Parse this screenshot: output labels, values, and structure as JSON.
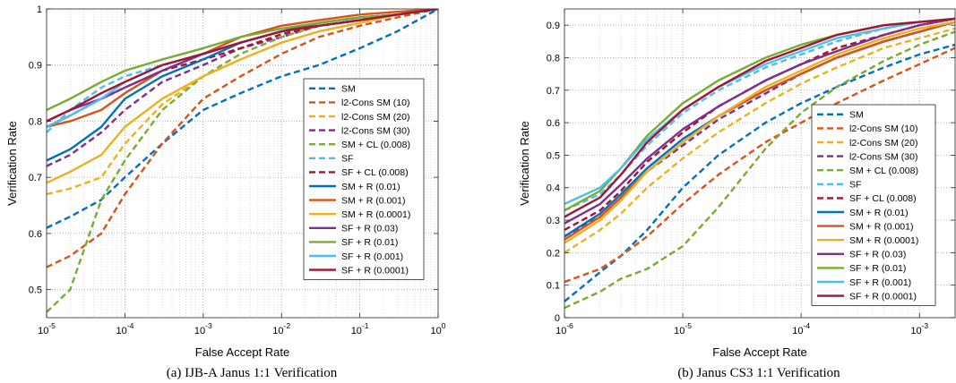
{
  "chart_data": [
    {
      "type": "line",
      "caption": "(a) IJB-A Janus 1:1 Verification",
      "xlabel": "False Accept Rate",
      "ylabel": "Verification Rate",
      "xscale": "log",
      "xlim": [
        1e-05,
        1
      ],
      "ylim": [
        0.45,
        1
      ],
      "xticks": [
        1e-05,
        0.0001,
        0.001,
        0.01,
        0.1,
        1
      ],
      "xtick_labels": [
        [
          "10",
          "-5"
        ],
        [
          "10",
          "-4"
        ],
        [
          "10",
          "-3"
        ],
        [
          "10",
          "-2"
        ],
        [
          "10",
          "-1"
        ],
        [
          "10",
          "0"
        ]
      ],
      "yticks": [
        0.5,
        0.6,
        0.7,
        0.8,
        0.9,
        1
      ],
      "ytick_labels": [
        "0.5",
        "0.6",
        "0.7",
        "0.8",
        "0.9",
        "1"
      ],
      "grid": true,
      "legend_position": "center-right",
      "series": [
        {
          "name": "SM",
          "color": "#0072BD",
          "dash": true,
          "x": [
            1e-05,
            2e-05,
            5e-05,
            0.0001,
            0.0003,
            0.001,
            0.003,
            0.01,
            0.03,
            0.1,
            0.3,
            1
          ],
          "y": [
            0.61,
            0.63,
            0.66,
            0.7,
            0.76,
            0.82,
            0.85,
            0.88,
            0.9,
            0.93,
            0.96,
            1.0
          ]
        },
        {
          "name": "l2-Cons SM (10)",
          "color": "#D95319",
          "dash": true,
          "x": [
            1e-05,
            2e-05,
            5e-05,
            0.0001,
            0.0003,
            0.001,
            0.003,
            0.01,
            0.03,
            0.1,
            0.3,
            1
          ],
          "y": [
            0.54,
            0.56,
            0.6,
            0.67,
            0.76,
            0.84,
            0.88,
            0.92,
            0.95,
            0.97,
            0.985,
            1.0
          ]
        },
        {
          "name": "l2-Cons SM (20)",
          "color": "#EDB120",
          "dash": true,
          "x": [
            1e-05,
            2e-05,
            5e-05,
            0.0001,
            0.0003,
            0.001,
            0.003,
            0.01,
            0.03,
            0.1,
            0.3,
            1
          ],
          "y": [
            0.67,
            0.68,
            0.7,
            0.76,
            0.83,
            0.88,
            0.91,
            0.94,
            0.96,
            0.975,
            0.99,
            1.0
          ]
        },
        {
          "name": "l2-Cons SM (30)",
          "color": "#7E2F8E",
          "dash": true,
          "x": [
            1e-05,
            2e-05,
            5e-05,
            0.0001,
            0.0003,
            0.001,
            0.003,
            0.01,
            0.03,
            0.1,
            0.3,
            1
          ],
          "y": [
            0.72,
            0.74,
            0.78,
            0.82,
            0.87,
            0.9,
            0.93,
            0.95,
            0.97,
            0.98,
            0.99,
            1.0
          ]
        },
        {
          "name": "SM + CL (0.008)",
          "color": "#77AC30",
          "dash": true,
          "x": [
            1e-05,
            2e-05,
            5e-05,
            0.0001,
            0.0003,
            0.001,
            0.003,
            0.01,
            0.03,
            0.1,
            0.3,
            1
          ],
          "y": [
            0.46,
            0.5,
            0.66,
            0.73,
            0.82,
            0.88,
            0.92,
            0.95,
            0.97,
            0.98,
            0.99,
            1.0
          ]
        },
        {
          "name": "SF",
          "color": "#4DBEEE",
          "dash": true,
          "x": [
            1e-05,
            2e-05,
            5e-05,
            0.0001,
            0.0003,
            0.001,
            0.003,
            0.01,
            0.03,
            0.1,
            0.3,
            1
          ],
          "y": [
            0.78,
            0.82,
            0.86,
            0.88,
            0.9,
            0.92,
            0.94,
            0.96,
            0.97,
            0.98,
            0.99,
            1.0
          ]
        },
        {
          "name": "SF + CL (0.008)",
          "color": "#A2142F",
          "dash": true,
          "x": [
            1e-05,
            2e-05,
            5e-05,
            0.0001,
            0.0003,
            0.001,
            0.003,
            0.01,
            0.03,
            0.1,
            0.3,
            1
          ],
          "y": [
            0.79,
            0.81,
            0.84,
            0.86,
            0.89,
            0.91,
            0.93,
            0.955,
            0.97,
            0.98,
            0.99,
            1.0
          ]
        },
        {
          "name": "SM + R (0.01)",
          "color": "#0072BD",
          "dash": false,
          "x": [
            1e-05,
            2e-05,
            5e-05,
            0.0001,
            0.0003,
            0.001,
            0.003,
            0.01,
            0.03,
            0.1,
            0.3,
            1
          ],
          "y": [
            0.73,
            0.75,
            0.79,
            0.84,
            0.88,
            0.91,
            0.94,
            0.96,
            0.975,
            0.985,
            0.99,
            1.0
          ]
        },
        {
          "name": "SM + R (0.001)",
          "color": "#D95319",
          "dash": false,
          "x": [
            1e-05,
            2e-05,
            5e-05,
            0.0001,
            0.0003,
            0.001,
            0.003,
            0.01,
            0.03,
            0.1,
            0.3,
            1
          ],
          "y": [
            0.79,
            0.8,
            0.82,
            0.85,
            0.89,
            0.92,
            0.95,
            0.97,
            0.98,
            0.99,
            0.995,
            1.0
          ]
        },
        {
          "name": "SM + R (0.0001)",
          "color": "#EDB120",
          "dash": false,
          "x": [
            1e-05,
            2e-05,
            5e-05,
            0.0001,
            0.0003,
            0.001,
            0.003,
            0.01,
            0.03,
            0.1,
            0.3,
            1
          ],
          "y": [
            0.69,
            0.71,
            0.74,
            0.79,
            0.84,
            0.88,
            0.91,
            0.94,
            0.96,
            0.975,
            0.99,
            1.0
          ]
        },
        {
          "name": "SF + R (0.03)",
          "color": "#7E2F8E",
          "dash": false,
          "x": [
            1e-05,
            2e-05,
            5e-05,
            0.0001,
            0.0003,
            0.001,
            0.003,
            0.01,
            0.03,
            0.1,
            0.3,
            1
          ],
          "y": [
            0.8,
            0.82,
            0.84,
            0.86,
            0.89,
            0.92,
            0.94,
            0.96,
            0.975,
            0.985,
            0.99,
            1.0
          ]
        },
        {
          "name": "SF + R (0.01)",
          "color": "#77AC30",
          "dash": false,
          "x": [
            1e-05,
            2e-05,
            5e-05,
            0.0001,
            0.0003,
            0.001,
            0.003,
            0.01,
            0.03,
            0.1,
            0.3,
            1
          ],
          "y": [
            0.82,
            0.84,
            0.87,
            0.89,
            0.91,
            0.93,
            0.95,
            0.965,
            0.975,
            0.985,
            0.99,
            1.0
          ]
        },
        {
          "name": "SF + R (0.001)",
          "color": "#4DBEEE",
          "dash": false,
          "x": [
            1e-05,
            2e-05,
            5e-05,
            0.0001,
            0.0003,
            0.001,
            0.003,
            0.01,
            0.03,
            0.1,
            0.3,
            1
          ],
          "y": [
            0.79,
            0.81,
            0.84,
            0.87,
            0.9,
            0.92,
            0.94,
            0.96,
            0.97,
            0.98,
            0.99,
            1.0
          ]
        },
        {
          "name": "SF + R (0.0001)",
          "color": "#A2142F",
          "dash": false,
          "x": [
            1e-05,
            2e-05,
            5e-05,
            0.0001,
            0.0003,
            0.001,
            0.003,
            0.01,
            0.03,
            0.1,
            0.3,
            1
          ],
          "y": [
            0.8,
            0.82,
            0.85,
            0.87,
            0.9,
            0.92,
            0.94,
            0.96,
            0.97,
            0.98,
            0.99,
            1.0
          ]
        }
      ]
    },
    {
      "type": "line",
      "caption": "(b) Janus CS3 1:1 Verification",
      "xlabel": "False Accept Rate",
      "ylabel": "Verification Rate",
      "xscale": "log",
      "xlim": [
        1e-06,
        0.002
      ],
      "ylim": [
        0,
        0.95
      ],
      "xticks": [
        1e-06,
        1e-05,
        0.0001,
        0.001
      ],
      "xtick_labels": [
        [
          "10",
          "-6"
        ],
        [
          "10",
          "-5"
        ],
        [
          "10",
          "-4"
        ],
        [
          "10",
          "-3"
        ]
      ],
      "yticks": [
        0,
        0.1,
        0.2,
        0.3,
        0.4,
        0.5,
        0.6,
        0.7,
        0.8,
        0.9
      ],
      "ytick_labels": [
        "0",
        "0.1",
        "0.2",
        "0.3",
        "0.4",
        "0.5",
        "0.6",
        "0.7",
        "0.8",
        "0.9"
      ],
      "grid": true,
      "legend_position": "center-right",
      "series": [
        {
          "name": "SM",
          "color": "#0072BD",
          "dash": true,
          "x": [
            1e-06,
            2e-06,
            3e-06,
            5e-06,
            1e-05,
            2e-05,
            5e-05,
            0.0001,
            0.0002,
            0.0005,
            0.001,
            0.002
          ],
          "y": [
            0.05,
            0.14,
            0.19,
            0.27,
            0.4,
            0.5,
            0.6,
            0.66,
            0.71,
            0.77,
            0.81,
            0.84
          ]
        },
        {
          "name": "l2-Cons SM (10)",
          "color": "#D95319",
          "dash": true,
          "x": [
            1e-06,
            2e-06,
            3e-06,
            5e-06,
            1e-05,
            2e-05,
            5e-05,
            0.0001,
            0.0002,
            0.0005,
            0.001,
            0.002
          ],
          "y": [
            0.11,
            0.15,
            0.19,
            0.25,
            0.35,
            0.44,
            0.54,
            0.6,
            0.66,
            0.73,
            0.78,
            0.83
          ]
        },
        {
          "name": "l2-Cons SM (20)",
          "color": "#EDB120",
          "dash": true,
          "x": [
            1e-06,
            2e-06,
            3e-06,
            5e-06,
            1e-05,
            2e-05,
            5e-05,
            0.0001,
            0.0002,
            0.0005,
            0.001,
            0.002
          ],
          "y": [
            0.2,
            0.27,
            0.32,
            0.4,
            0.49,
            0.57,
            0.66,
            0.72,
            0.77,
            0.83,
            0.86,
            0.89
          ]
        },
        {
          "name": "l2-Cons SM (30)",
          "color": "#7E2F8E",
          "dash": true,
          "x": [
            1e-06,
            2e-06,
            3e-06,
            5e-06,
            1e-05,
            2e-05,
            5e-05,
            0.0001,
            0.0002,
            0.0005,
            0.001,
            0.002
          ],
          "y": [
            0.25,
            0.31,
            0.37,
            0.45,
            0.53,
            0.61,
            0.69,
            0.75,
            0.8,
            0.85,
            0.88,
            0.91
          ]
        },
        {
          "name": "SM + CL (0.008)",
          "color": "#77AC30",
          "dash": true,
          "x": [
            1e-06,
            2e-06,
            3e-06,
            5e-06,
            1e-05,
            2e-05,
            5e-05,
            0.0001,
            0.0002,
            0.0005,
            0.001,
            0.002
          ],
          "y": [
            0.03,
            0.08,
            0.12,
            0.15,
            0.22,
            0.34,
            0.52,
            0.63,
            0.71,
            0.79,
            0.84,
            0.88
          ]
        },
        {
          "name": "SF",
          "color": "#4DBEEE",
          "dash": true,
          "x": [
            1e-06,
            2e-06,
            3e-06,
            5e-06,
            1e-05,
            2e-05,
            5e-05,
            0.0001,
            0.0002,
            0.0005,
            0.001,
            0.002
          ],
          "y": [
            0.33,
            0.38,
            0.44,
            0.53,
            0.63,
            0.7,
            0.77,
            0.81,
            0.85,
            0.89,
            0.91,
            0.92
          ]
        },
        {
          "name": "SF + CL (0.008)",
          "color": "#A2142F",
          "dash": true,
          "x": [
            1e-06,
            2e-06,
            3e-06,
            5e-06,
            1e-05,
            2e-05,
            5e-05,
            0.0001,
            0.0002,
            0.0005,
            0.001,
            0.002
          ],
          "y": [
            0.27,
            0.33,
            0.39,
            0.48,
            0.57,
            0.65,
            0.73,
            0.78,
            0.83,
            0.87,
            0.9,
            0.92
          ]
        },
        {
          "name": "SM + R (0.01)",
          "color": "#0072BD",
          "dash": false,
          "x": [
            1e-06,
            2e-06,
            3e-06,
            5e-06,
            1e-05,
            2e-05,
            5e-05,
            0.0001,
            0.0002,
            0.0005,
            0.001,
            0.002
          ],
          "y": [
            0.25,
            0.32,
            0.38,
            0.46,
            0.55,
            0.62,
            0.7,
            0.75,
            0.8,
            0.85,
            0.88,
            0.91
          ]
        },
        {
          "name": "SM + R (0.001)",
          "color": "#D95319",
          "dash": false,
          "x": [
            1e-06,
            2e-06,
            3e-06,
            5e-06,
            1e-05,
            2e-05,
            5e-05,
            0.0001,
            0.0002,
            0.0005,
            0.001,
            0.002
          ],
          "y": [
            0.24,
            0.31,
            0.37,
            0.45,
            0.54,
            0.62,
            0.7,
            0.75,
            0.8,
            0.85,
            0.88,
            0.91
          ]
        },
        {
          "name": "SM + R (0.0001)",
          "color": "#EDB120",
          "dash": false,
          "x": [
            1e-06,
            2e-06,
            3e-06,
            5e-06,
            1e-05,
            2e-05,
            5e-05,
            0.0001,
            0.0002,
            0.0005,
            0.001,
            0.002
          ],
          "y": [
            0.23,
            0.3,
            0.36,
            0.45,
            0.54,
            0.62,
            0.71,
            0.76,
            0.81,
            0.86,
            0.89,
            0.91
          ]
        },
        {
          "name": "SF + R (0.03)",
          "color": "#7E2F8E",
          "dash": false,
          "x": [
            1e-06,
            2e-06,
            3e-06,
            5e-06,
            1e-05,
            2e-05,
            5e-05,
            0.0001,
            0.0002,
            0.0005,
            0.001,
            0.002
          ],
          "y": [
            0.29,
            0.35,
            0.41,
            0.49,
            0.58,
            0.65,
            0.73,
            0.78,
            0.82,
            0.87,
            0.9,
            0.92
          ]
        },
        {
          "name": "SF + R (0.01)",
          "color": "#77AC30",
          "dash": false,
          "x": [
            1e-06,
            2e-06,
            3e-06,
            5e-06,
            1e-05,
            2e-05,
            5e-05,
            0.0001,
            0.0002,
            0.0005,
            0.001,
            0.002
          ],
          "y": [
            0.33,
            0.39,
            0.46,
            0.56,
            0.66,
            0.73,
            0.8,
            0.84,
            0.87,
            0.9,
            0.91,
            0.92
          ]
        },
        {
          "name": "SF + R (0.001)",
          "color": "#4DBEEE",
          "dash": false,
          "x": [
            1e-06,
            2e-06,
            3e-06,
            5e-06,
            1e-05,
            2e-05,
            5e-05,
            0.0001,
            0.0002,
            0.0005,
            0.001,
            0.002
          ],
          "y": [
            0.35,
            0.4,
            0.46,
            0.55,
            0.64,
            0.71,
            0.78,
            0.82,
            0.86,
            0.89,
            0.91,
            0.92
          ]
        },
        {
          "name": "SF + R (0.0001)",
          "color": "#A2142F",
          "dash": false,
          "x": [
            1e-06,
            2e-06,
            3e-06,
            5e-06,
            1e-05,
            2e-05,
            5e-05,
            0.0001,
            0.0002,
            0.0005,
            0.001,
            0.002
          ],
          "y": [
            0.31,
            0.37,
            0.44,
            0.54,
            0.64,
            0.71,
            0.79,
            0.83,
            0.87,
            0.9,
            0.91,
            0.92
          ]
        }
      ]
    }
  ]
}
